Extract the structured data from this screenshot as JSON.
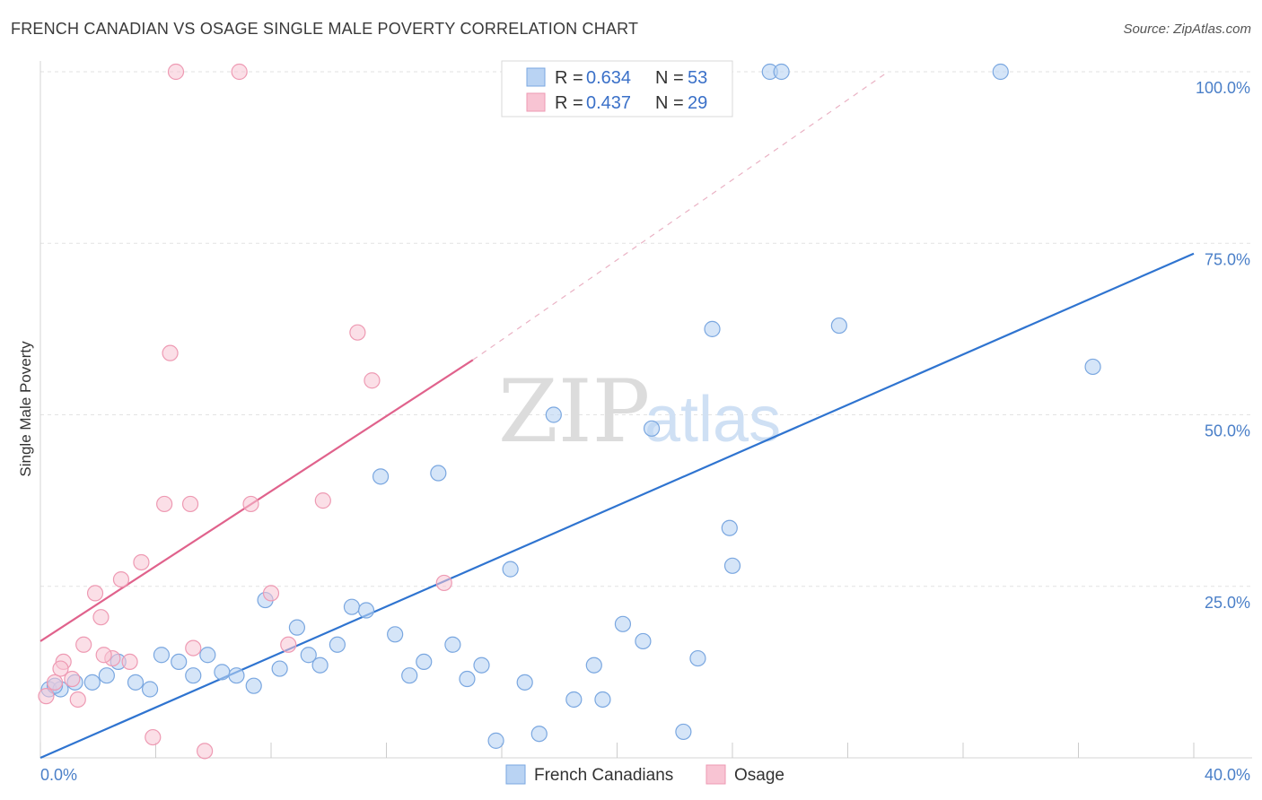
{
  "title": "FRENCH CANADIAN VS OSAGE SINGLE MALE POVERTY CORRELATION CHART",
  "source": "Source: ZipAtlas.com",
  "watermark": {
    "zip": "ZIP",
    "atlas": "atlas"
  },
  "colors": {
    "blue_fill": "#b9d3f3",
    "blue_stroke": "#7aa7e0",
    "blue_line": "#2f74d0",
    "pink_fill": "#f8c4d3",
    "pink_stroke": "#ee9ab3",
    "pink_line": "#e0628c",
    "grid": "#e2e2e2",
    "axis_text": "#4a7fc8"
  },
  "legend": {
    "rows": [
      {
        "r_label": "R = ",
        "r_value": "0.634",
        "n_label": "N = ",
        "n_value": "53"
      },
      {
        "r_label": "R = ",
        "r_value": "0.437",
        "n_label": "N = ",
        "n_value": "29"
      }
    ]
  },
  "chart_data": {
    "type": "scatter",
    "title": "FRENCH CANADIAN VS OSAGE SINGLE MALE POVERTY CORRELATION CHART",
    "xlabel": "",
    "ylabel": "Single Male Poverty",
    "xlim": [
      0,
      40
    ],
    "ylim": [
      0,
      100
    ],
    "x_tick_labels": [
      "0.0%",
      "40.0%"
    ],
    "y_tick_labels": [
      "25.0%",
      "50.0%",
      "75.0%",
      "100.0%"
    ],
    "y_ticks": [
      25,
      50,
      75,
      100
    ],
    "grid": true,
    "legend_position": "top-center",
    "series": [
      {
        "name": "French Canadians",
        "color": "#b9d3f3",
        "points": [
          [
            0.3,
            10
          ],
          [
            0.7,
            10
          ],
          [
            1.2,
            11
          ],
          [
            1.8,
            11
          ],
          [
            2.3,
            12
          ],
          [
            2.7,
            14
          ],
          [
            3.3,
            11
          ],
          [
            3.8,
            10
          ],
          [
            4.2,
            15
          ],
          [
            4.8,
            14
          ],
          [
            5.3,
            12
          ],
          [
            5.8,
            15
          ],
          [
            6.3,
            12.5
          ],
          [
            6.8,
            12
          ],
          [
            7.4,
            10.5
          ],
          [
            7.8,
            23
          ],
          [
            8.3,
            13
          ],
          [
            8.9,
            19
          ],
          [
            9.3,
            15
          ],
          [
            9.7,
            13.5
          ],
          [
            10.3,
            16.5
          ],
          [
            10.8,
            22
          ],
          [
            11.3,
            21.5
          ],
          [
            11.8,
            41
          ],
          [
            12.3,
            18
          ],
          [
            12.8,
            12
          ],
          [
            13.3,
            14
          ],
          [
            13.8,
            41.5
          ],
          [
            14.3,
            16.5
          ],
          [
            14.8,
            11.5
          ],
          [
            15.3,
            13.5
          ],
          [
            15.8,
            2.5
          ],
          [
            16.3,
            27.5
          ],
          [
            16.8,
            11
          ],
          [
            17.3,
            3.5
          ],
          [
            17.8,
            50
          ],
          [
            18.5,
            8.5
          ],
          [
            19.2,
            13.5
          ],
          [
            19.5,
            8.5
          ],
          [
            20.2,
            19.5
          ],
          [
            20.9,
            17
          ],
          [
            21.2,
            48
          ],
          [
            22.3,
            3.8
          ],
          [
            22.8,
            14.5
          ],
          [
            23.3,
            62.5
          ],
          [
            23.9,
            33.5
          ],
          [
            24.0,
            28
          ],
          [
            25.3,
            100
          ],
          [
            25.7,
            100
          ],
          [
            27.7,
            63
          ],
          [
            33.3,
            100
          ],
          [
            36.5,
            57
          ],
          [
            0.5,
            10.5
          ]
        ],
        "trendline": {
          "x": [
            0,
            40
          ],
          "y": [
            0,
            73.5
          ]
        }
      },
      {
        "name": "Osage",
        "color": "#f8c4d3",
        "points": [
          [
            0.2,
            9
          ],
          [
            0.5,
            11
          ],
          [
            0.8,
            14
          ],
          [
            0.7,
            13
          ],
          [
            1.1,
            11.5
          ],
          [
            1.3,
            8.5
          ],
          [
            1.5,
            16.5
          ],
          [
            1.9,
            24
          ],
          [
            2.1,
            20.5
          ],
          [
            2.5,
            14.5
          ],
          [
            2.8,
            26
          ],
          [
            3.1,
            14
          ],
          [
            3.5,
            28.5
          ],
          [
            3.9,
            3
          ],
          [
            4.3,
            37
          ],
          [
            4.5,
            59
          ],
          [
            4.7,
            100
          ],
          [
            5.2,
            37
          ],
          [
            5.3,
            16
          ],
          [
            5.7,
            1
          ],
          [
            6.9,
            100
          ],
          [
            7.3,
            37
          ],
          [
            8.0,
            24
          ],
          [
            8.6,
            16.5
          ],
          [
            9.8,
            37.5
          ],
          [
            11.0,
            62
          ],
          [
            11.5,
            55
          ],
          [
            14.0,
            25.5
          ],
          [
            2.2,
            15
          ]
        ],
        "trendline": {
          "x": [
            0,
            15
          ],
          "y": [
            17,
            58
          ]
        },
        "trendline_extended": {
          "x": [
            15,
            29.4
          ],
          "y": [
            58,
            100
          ]
        }
      }
    ]
  },
  "bottom_legend": [
    {
      "label": "French Canadians"
    },
    {
      "label": "Osage"
    }
  ]
}
